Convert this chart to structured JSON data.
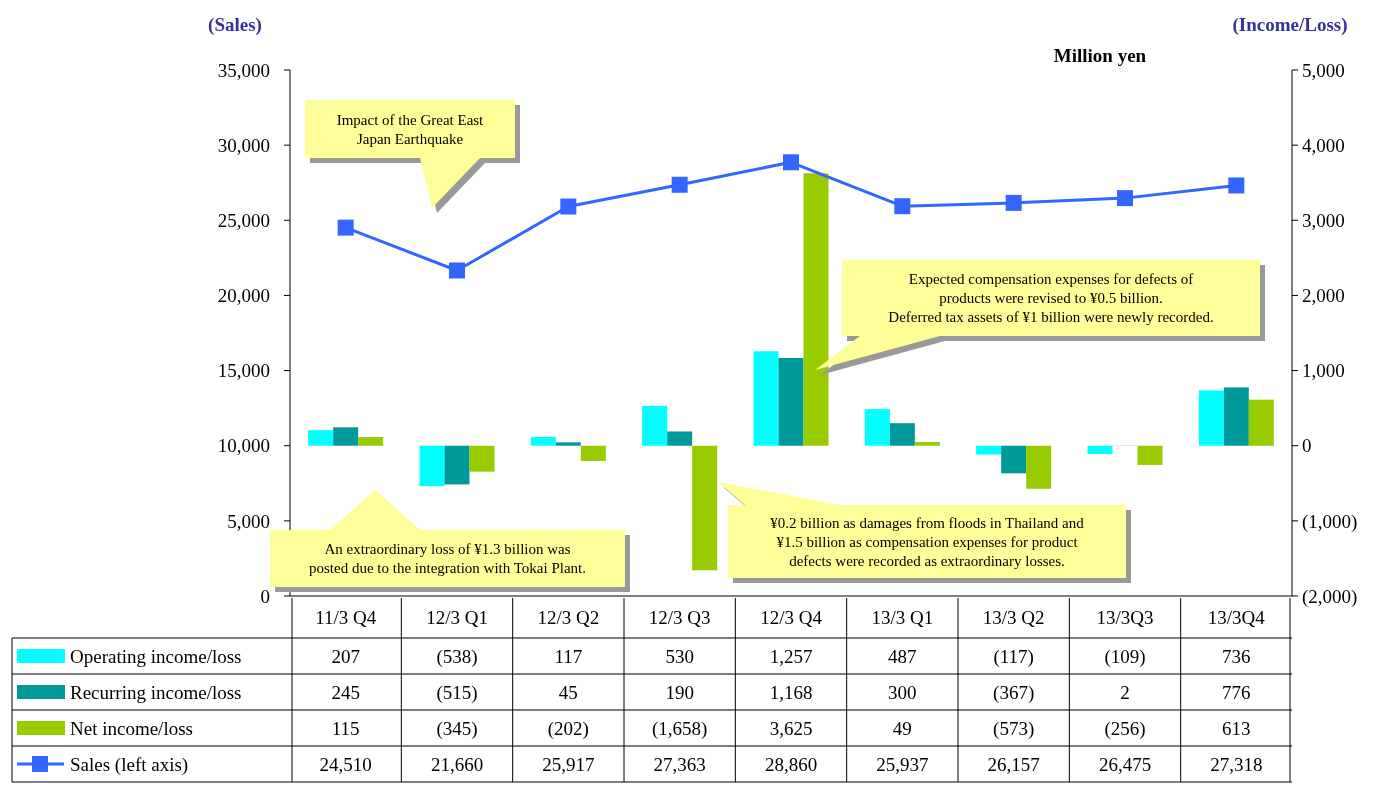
{
  "chart_data": {
    "type": "bar",
    "subtitle": "Million yen",
    "ylabel": "(Sales)",
    "y2label": "(Income/Loss)",
    "categories": [
      "11/3 Q4",
      "12/3 Q1",
      "12/3 Q2",
      "12/3 Q3",
      "12/3 Q4",
      "13/3 Q1",
      "13/3 Q2",
      "13/3Q3",
      "13/3Q4"
    ],
    "ylim": [
      0,
      35000
    ],
    "yticks": [
      {
        "value": 0,
        "label": "0"
      },
      {
        "value": 5000,
        "label": "5,000"
      },
      {
        "value": 10000,
        "label": "10,000"
      },
      {
        "value": 15000,
        "label": "15,000"
      },
      {
        "value": 20000,
        "label": "20,000"
      },
      {
        "value": 25000,
        "label": "25,000"
      },
      {
        "value": 30000,
        "label": "30,000"
      },
      {
        "value": 35000,
        "label": "35,000"
      }
    ],
    "y2lim": [
      -2000,
      5000
    ],
    "y2ticks": [
      {
        "value": -2000,
        "label": "(2,000)"
      },
      {
        "value": -1000,
        "label": "(1,000)"
      },
      0,
      {
        "value": 1000,
        "label": "1,000"
      },
      {
        "value": 2000,
        "label": "2,000"
      },
      {
        "value": 3000,
        "label": "3,000"
      },
      {
        "value": 4000,
        "label": "4,000"
      },
      {
        "value": 5000,
        "label": "5,000"
      }
    ],
    "legend": "bottom",
    "marker": "square",
    "series": [
      {
        "name": "Operating income/loss",
        "axis": "y2",
        "color": "#00ffff",
        "values": [
          207,
          -538,
          117,
          530,
          1257,
          487,
          -117,
          -109,
          736
        ],
        "value_labels": [
          "207",
          "(538)",
          "117",
          "530",
          "1,257",
          "487",
          "(117)",
          "(109)",
          "736"
        ]
      },
      {
        "name": "Recurring income/loss",
        "axis": "y2",
        "color": "#009999",
        "values": [
          245,
          -515,
          45,
          190,
          1168,
          300,
          -367,
          2,
          776
        ],
        "value_labels": [
          "245",
          "(515)",
          "45",
          "190",
          "1,168",
          "300",
          "(367)",
          "2",
          "776"
        ]
      },
      {
        "name": "Net income/loss",
        "axis": "y2",
        "color": "#99cc00",
        "values": [
          115,
          -345,
          -202,
          -1658,
          3625,
          49,
          -573,
          -256,
          613
        ],
        "value_labels": [
          "115",
          "(345)",
          "(202)",
          "(1,658)",
          "3,625",
          "49",
          "(573)",
          "(256)",
          "613"
        ]
      },
      {
        "name": "Sales (left axis)",
        "type": "line",
        "axis": "y",
        "color": "#3366ff",
        "values": [
          24510,
          21660,
          25917,
          27363,
          28860,
          25937,
          26157,
          26475,
          27318
        ],
        "value_labels": [
          "24,510",
          "21,660",
          "25,917",
          "27,363",
          "28,860",
          "25,937",
          "26,157",
          "26,475",
          "27,318"
        ]
      }
    ],
    "annotations": [
      "Impact of the Great East\nJapan Earthquake",
      "Expected compensation expenses for defects of\nproducts were revised to ¥0.5 billion.\nDeferred tax assets of ¥1 billion were newly recorded.",
      "An extraordinary loss of ¥1.3 billion was\nposted due to the integration with Tokai Plant.",
      "¥0.2 billion as damages from floods in Thailand and\n¥1.5 billion as compensation expenses for product\ndefects were recorded as extraordinary losses."
    ]
  }
}
